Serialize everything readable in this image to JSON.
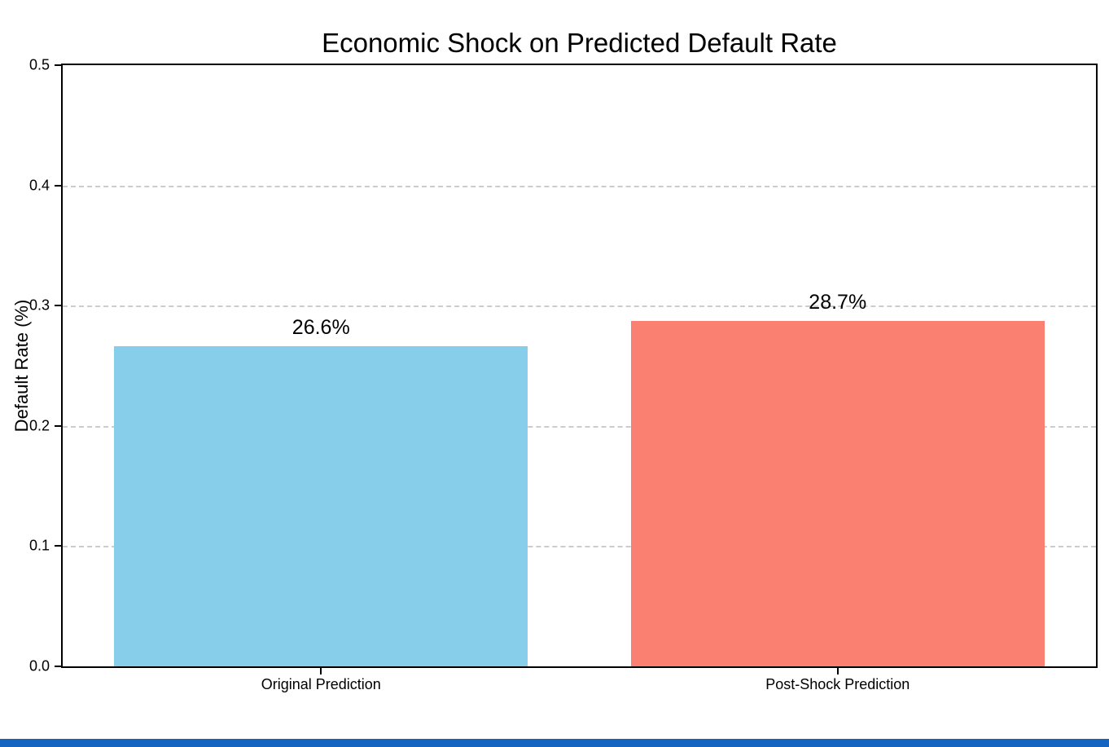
{
  "chart_data": {
    "type": "bar",
    "title": "Economic Shock on Predicted Default Rate",
    "categories": [
      "Original Prediction",
      "Post-Shock Prediction"
    ],
    "values": [
      0.266,
      0.287
    ],
    "bar_labels": [
      "26.6%",
      "28.7%"
    ],
    "bar_colors": [
      "#87CEEB",
      "#FA8072"
    ],
    "xlabel": "",
    "ylabel": "Default Rate (%)",
    "ylim": [
      0.0,
      0.5
    ],
    "yticks": [
      0.0,
      0.1,
      0.2,
      0.3,
      0.4,
      0.5
    ],
    "ytick_labels": [
      "0.0",
      "0.1",
      "0.2",
      "0.3",
      "0.4",
      "0.5"
    ],
    "grid": "horizontal-dashed",
    "legend_position": "none",
    "colors": {
      "grid": "#cccccc",
      "spine": "#000000",
      "text": "#000000",
      "background": "#ffffff",
      "bottom_strip": "#1565c0"
    }
  }
}
